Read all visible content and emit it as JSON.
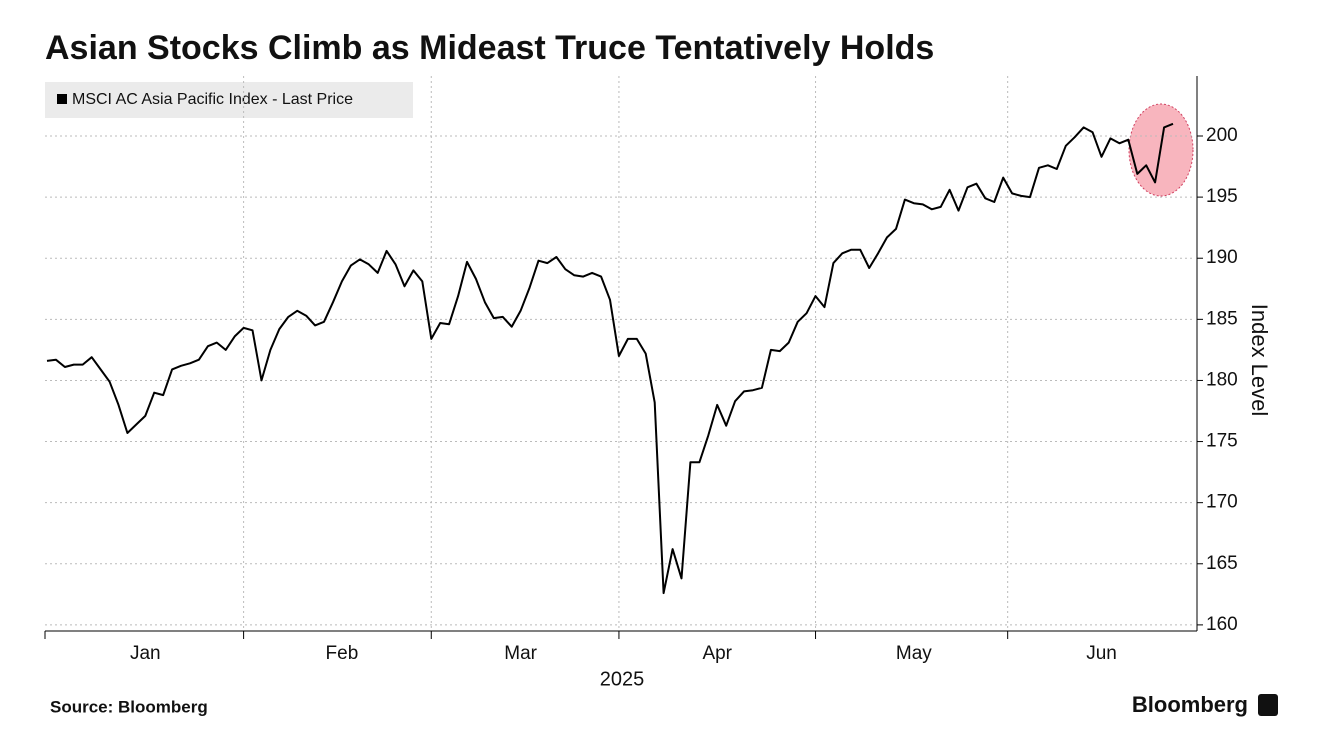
{
  "chart_data": {
    "type": "line",
    "title": "Asian Stocks Climb as Mideast Truce Tentatively Holds",
    "ylabel": "Index Level",
    "xlabel": "2025",
    "source": "Source: Bloomberg",
    "brand": "Bloomberg",
    "categories": [
      null,
      null,
      null,
      null,
      null,
      null,
      null,
      null,
      null,
      null,
      null,
      "Jan",
      null,
      null,
      null,
      null,
      null,
      null,
      null,
      null,
      null,
      null,
      null,
      null,
      null,
      null,
      null,
      null,
      null,
      null,
      null,
      null,
      null,
      "Feb",
      null,
      null,
      null,
      null,
      null,
      null,
      null,
      null,
      null,
      null,
      null,
      null,
      null,
      null,
      null,
      null,
      null,
      null,
      null,
      "Mar",
      null,
      null,
      null,
      null,
      null,
      null,
      null,
      null,
      null,
      null,
      null,
      null,
      null,
      null,
      null,
      null,
      null,
      null,
      null,
      null,
      null,
      "Apr",
      null,
      null,
      null,
      null,
      null,
      null,
      null,
      null,
      null,
      null,
      null,
      null,
      null,
      null,
      null,
      null,
      null,
      null,
      null,
      null,
      null,
      "May",
      null,
      null,
      null,
      null,
      null,
      null,
      null,
      null,
      null,
      null,
      null,
      null,
      null,
      null,
      null,
      null,
      null,
      null,
      null,
      null,
      "Jun",
      null,
      null,
      null,
      null,
      null,
      null,
      null,
      null
    ],
    "series": [
      {
        "name": "MSCI AC Asia Pacific Index - Last Price",
        "color": "#000000",
        "values": [
          181.6,
          181.7,
          181.1,
          181.3,
          181.3,
          181.9,
          180.9,
          179.9,
          178.0,
          175.7,
          176.4,
          177.1,
          179.0,
          178.8,
          180.9,
          181.2,
          181.4,
          181.7,
          182.8,
          183.1,
          182.5,
          183.6,
          184.3,
          184.1,
          180.0,
          182.5,
          184.2,
          185.2,
          185.7,
          185.3,
          184.5,
          184.8,
          186.4,
          188.1,
          189.4,
          189.9,
          189.5,
          188.8,
          190.6,
          189.5,
          187.7,
          189.0,
          188.1,
          183.4,
          184.7,
          184.6,
          186.9,
          189.7,
          188.3,
          186.4,
          185.1,
          185.2,
          184.4,
          185.7,
          187.6,
          189.8,
          189.6,
          190.1,
          189.1,
          188.6,
          188.5,
          188.8,
          188.5,
          186.6,
          182.0,
          183.4,
          183.4,
          182.2,
          178.2,
          162.6,
          166.2,
          163.8,
          173.3,
          173.3,
          175.5,
          178.0,
          176.3,
          178.3,
          179.1,
          179.2,
          179.4,
          182.5,
          182.4,
          183.1,
          184.8,
          185.5,
          186.9,
          186.0,
          189.6,
          190.4,
          190.7,
          190.7,
          189.2,
          190.4,
          191.7,
          192.4,
          194.8,
          194.5,
          194.4,
          194.0,
          194.2,
          195.6,
          193.9,
          195.8,
          196.1,
          194.9,
          194.6,
          196.6,
          195.3,
          195.1,
          195.0,
          197.4,
          197.6,
          197.3,
          199.2,
          199.9,
          200.7,
          200.3,
          198.3,
          199.8,
          199.4,
          199.7,
          196.9,
          197.6,
          196.2,
          200.7,
          201.0
        ]
      }
    ],
    "ylim": [
      159.5,
      204.5
    ],
    "yticks": [
      160,
      165,
      170,
      175,
      180,
      185,
      190,
      195,
      200
    ],
    "grid": true,
    "legend": "top-left"
  }
}
